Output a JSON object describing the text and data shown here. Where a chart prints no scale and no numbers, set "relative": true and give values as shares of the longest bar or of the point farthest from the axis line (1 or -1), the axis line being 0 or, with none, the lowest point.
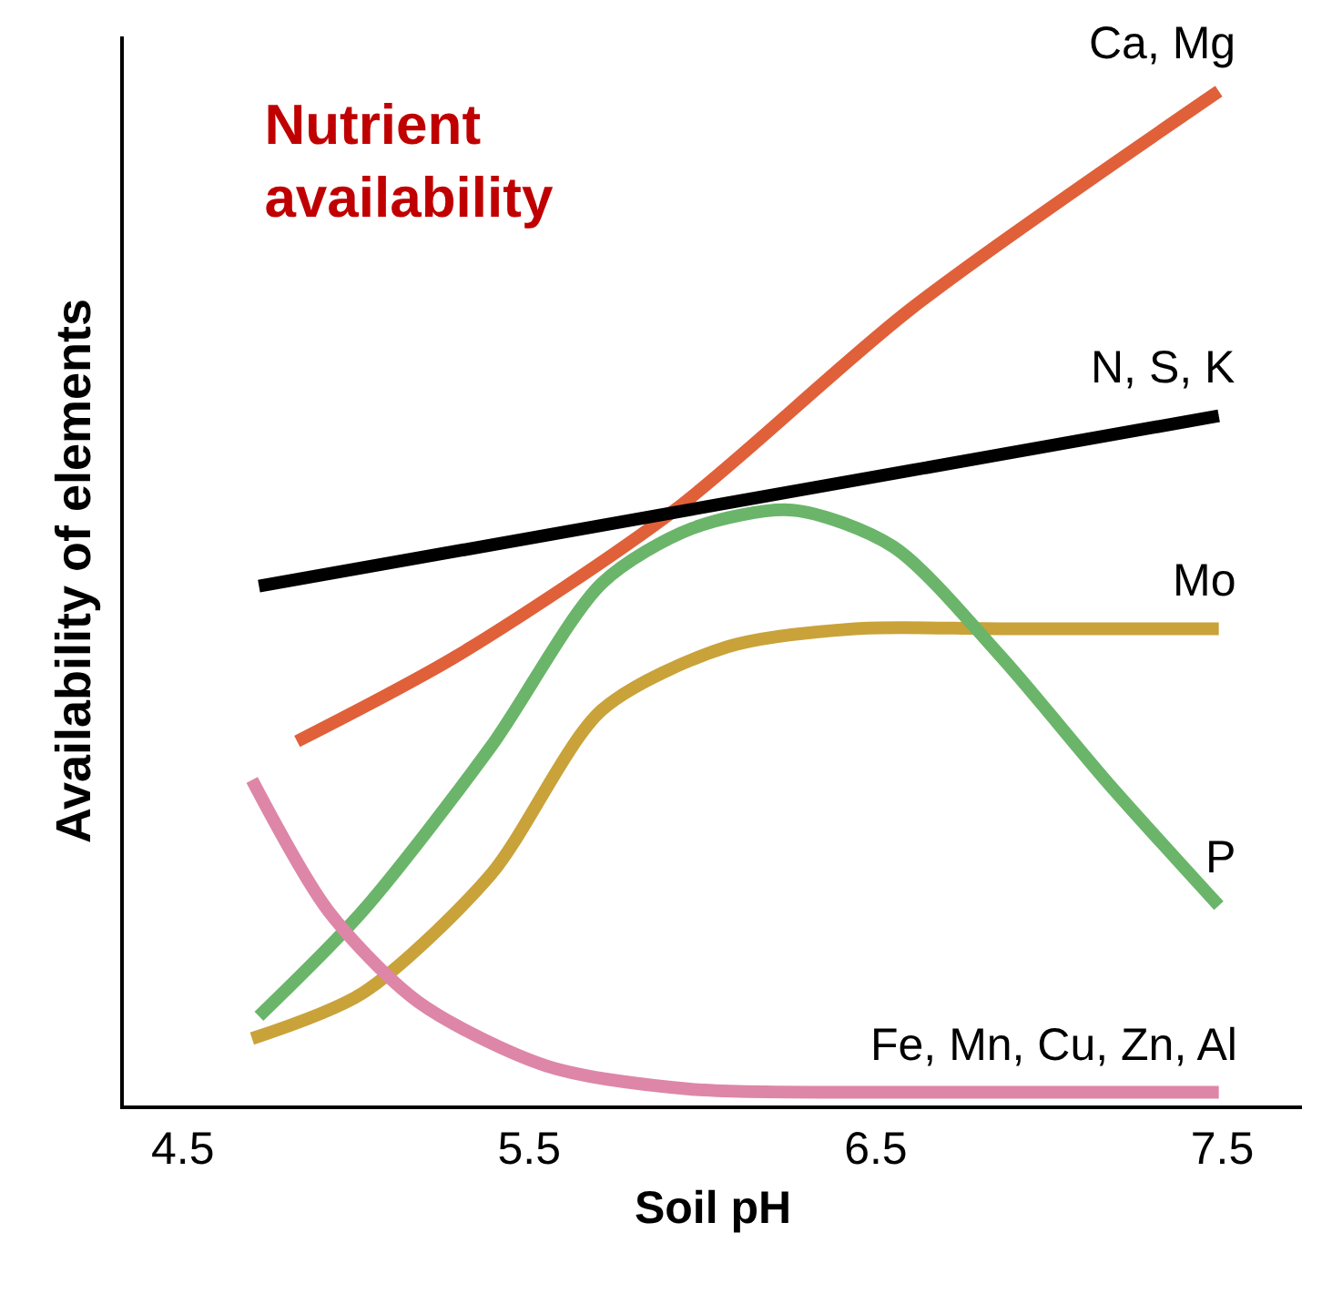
{
  "chart_data": {
    "type": "line",
    "title": "Nutrient\navailability",
    "xlabel": "Soil pH",
    "ylabel": "Availability of elements",
    "relative": true,
    "xlim": [
      4.33,
      7.73
    ],
    "xticks": [
      4.5,
      5.5,
      6.5,
      7.5
    ],
    "legend": false,
    "marker": "none",
    "line_style": "solid",
    "series": [
      {
        "name": "Ca, Mg",
        "color": "#e0603a",
        "x": [
          4.83,
          5.29,
          5.92,
          6.6,
          7.49
        ],
        "values": [
          0.359,
          0.443,
          0.587,
          0.785,
          1.0
        ]
      },
      {
        "name": "N, S, K",
        "color": "#000000",
        "x": [
          4.72,
          7.49
        ],
        "values": [
          0.512,
          0.68
        ]
      },
      {
        "name": "Mo",
        "color": "#c9a23a",
        "x": [
          4.7,
          5.02,
          5.39,
          5.71,
          6.07,
          6.44,
          6.86,
          7.49
        ],
        "values": [
          0.066,
          0.111,
          0.228,
          0.39,
          0.452,
          0.47,
          0.47,
          0.47
        ]
      },
      {
        "name": "P",
        "color": "#6ab56a",
        "x": [
          4.72,
          5.02,
          5.39,
          5.71,
          5.97,
          6.26,
          6.55,
          6.86,
          7.17,
          7.49
        ],
        "values": [
          0.088,
          0.192,
          0.354,
          0.515,
          0.569,
          0.587,
          0.551,
          0.443,
          0.318,
          0.197
        ]
      },
      {
        "name": "Fe, Mn, Cu, Zn, Al",
        "color": "#de86a8",
        "x": [
          4.7,
          4.92,
          5.18,
          5.55,
          5.97,
          6.6,
          7.49
        ],
        "values": [
          0.321,
          0.192,
          0.102,
          0.039,
          0.016,
          0.013,
          0.013
        ]
      }
    ]
  }
}
